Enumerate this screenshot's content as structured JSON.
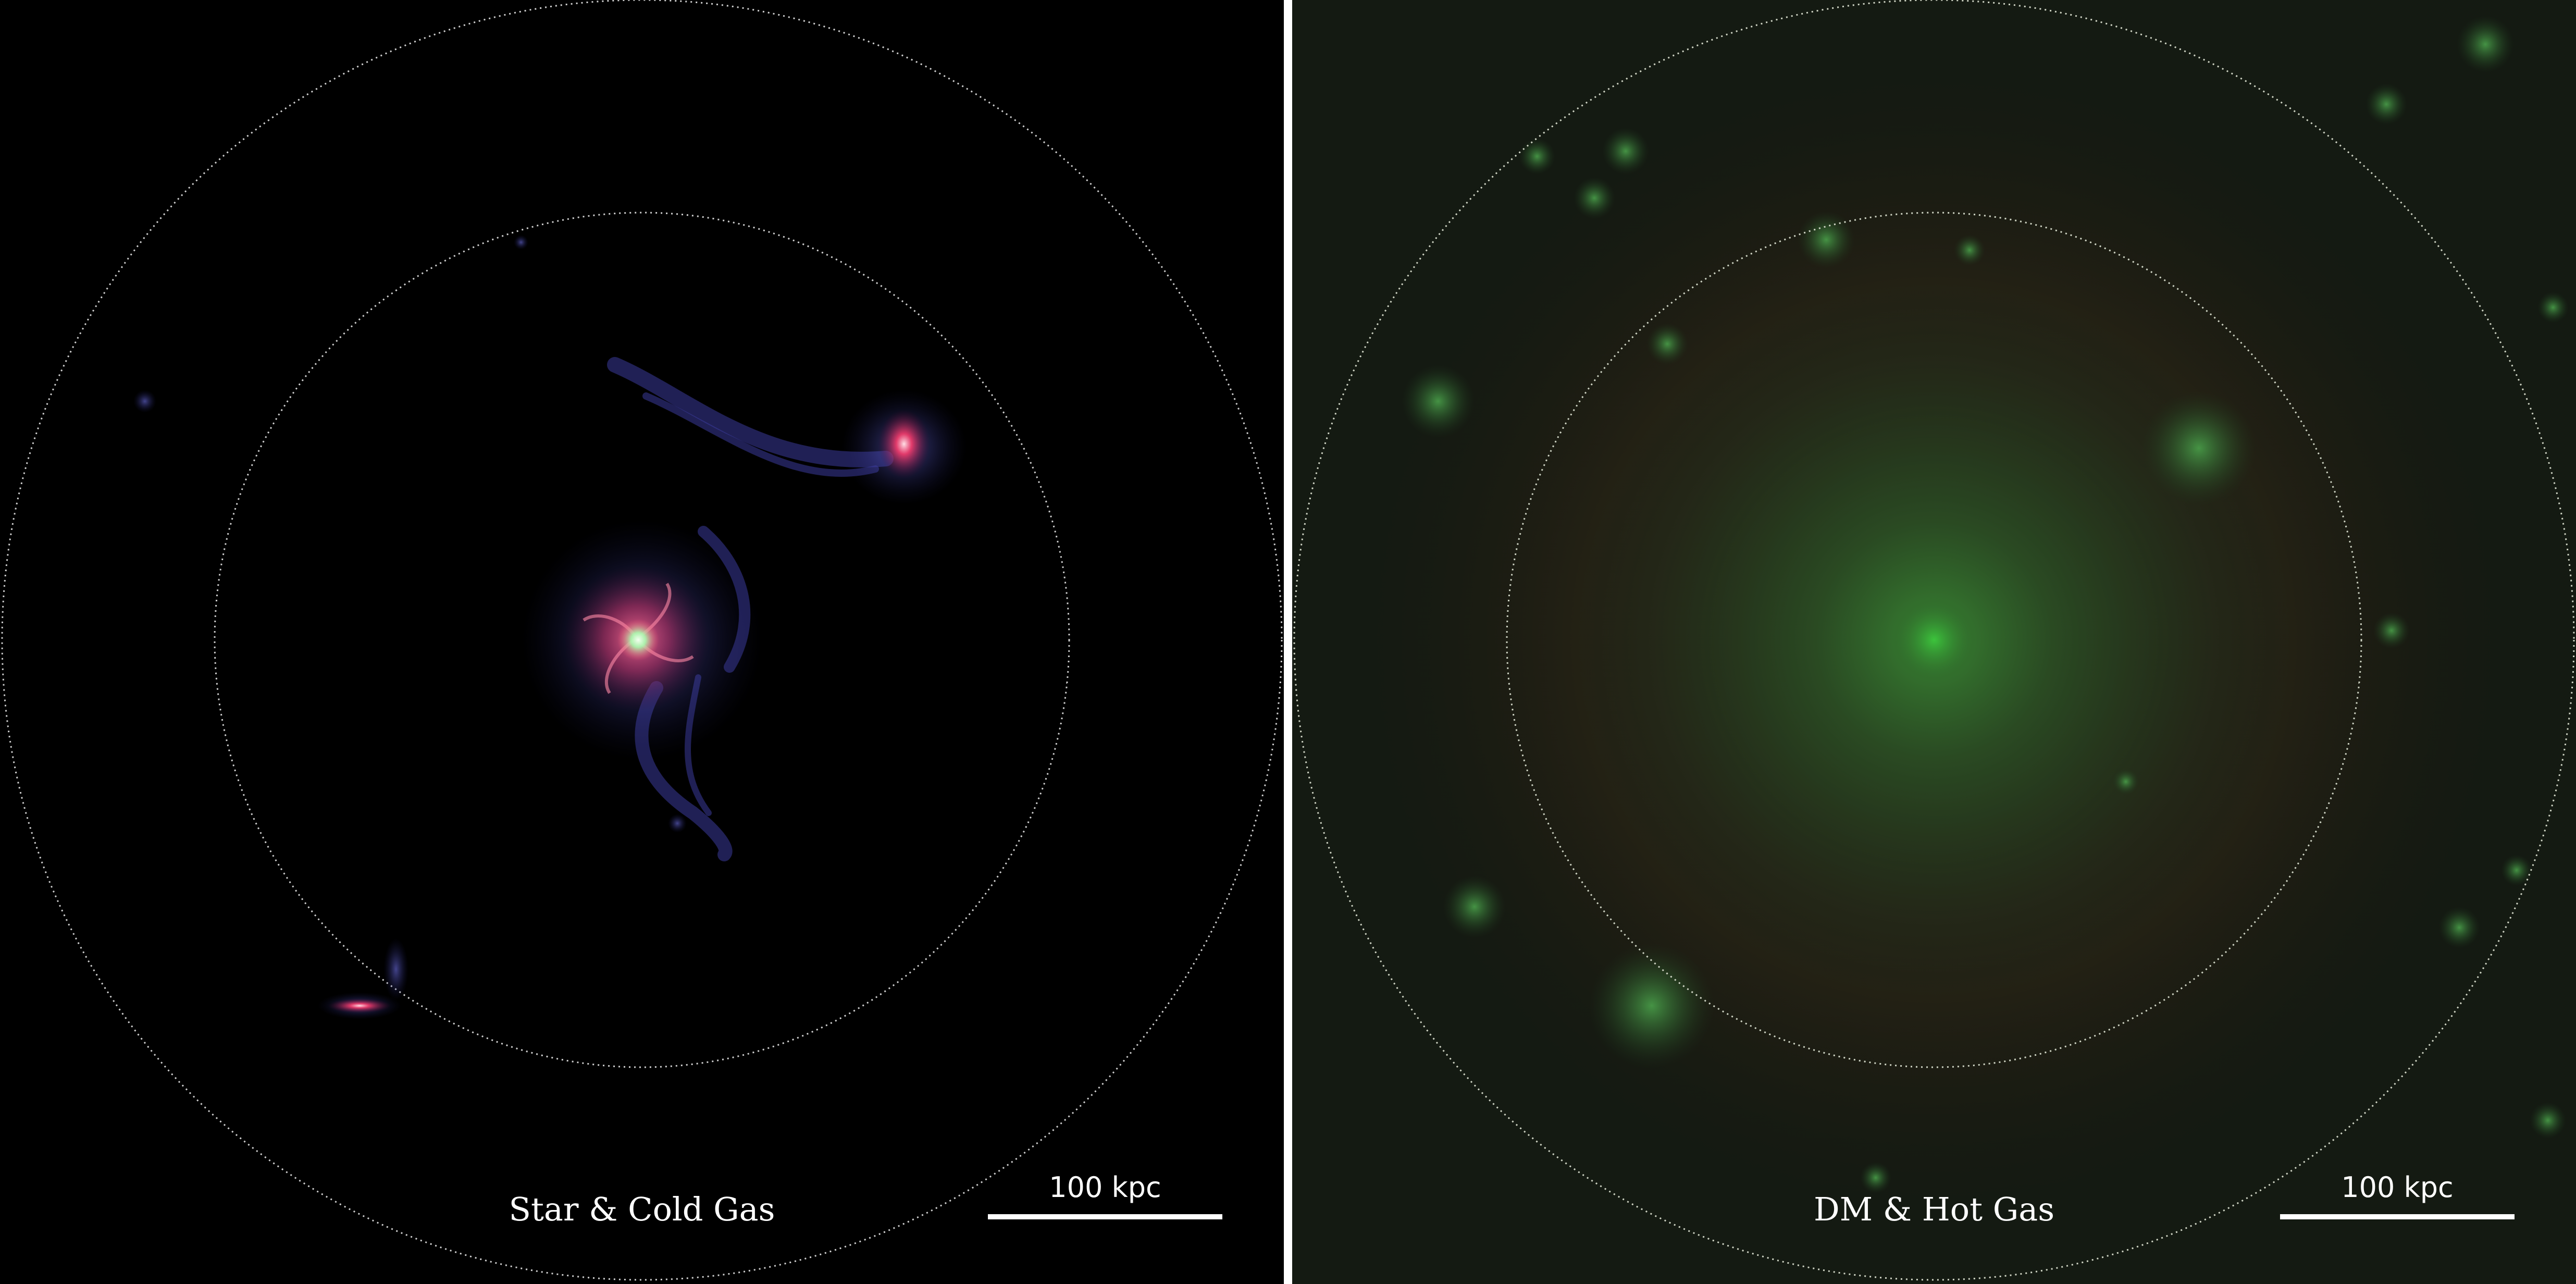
{
  "panels": [
    {
      "label": "Star & Cold Gas",
      "scalebar": "100 kpc",
      "background": "#000000",
      "palette": [
        "#ff3b5c",
        "#7a7cff",
        "#a8ffb0"
      ]
    },
    {
      "label": "DM & Hot Gas",
      "scalebar": "100 kpc",
      "background": "#141a12",
      "palette": [
        "#3f9a3f",
        "#6b3a1a"
      ]
    }
  ]
}
